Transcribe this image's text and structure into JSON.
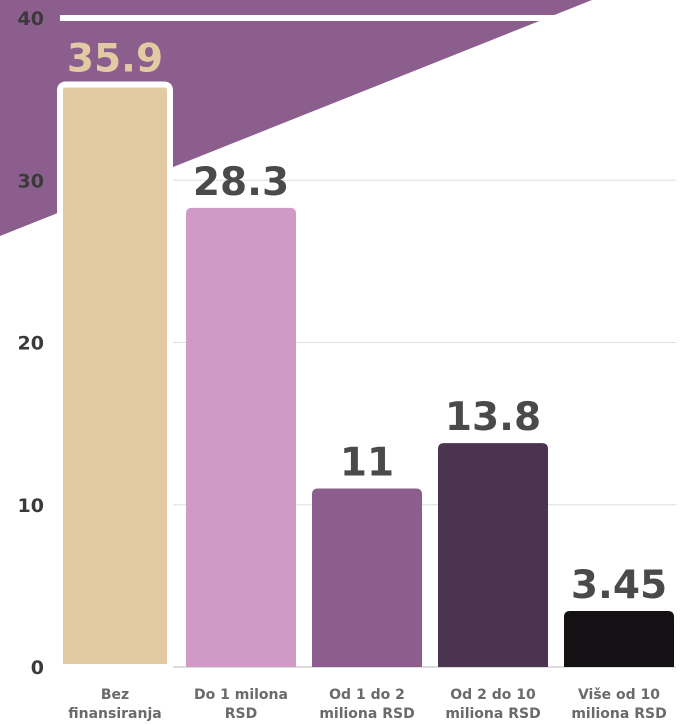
{
  "chart_data": {
    "type": "bar",
    "title": "",
    "xlabel": "",
    "ylabel": "",
    "ylim": [
      0,
      40
    ],
    "yticks": [
      0,
      10,
      20,
      30,
      40
    ],
    "grid": true,
    "categories": [
      [
        "Bez",
        "finansiranja"
      ],
      [
        "Do 1 milona",
        "RSD"
      ],
      [
        "Od 1 do 2",
        "miliona RSD"
      ],
      [
        "Od 2 do 10",
        "miliona RSD"
      ],
      [
        "Više od 10",
        "miliona RSD"
      ]
    ],
    "values": [
      35.9,
      28.3,
      11,
      13.8,
      3.45
    ],
    "value_labels": [
      "35.9",
      "28.3",
      "11",
      "13.8",
      "3.45"
    ],
    "bar_colors": [
      "#e2cba3",
      "#cf9ac6",
      "#8c5e8d",
      "#4b344f",
      "#141013"
    ],
    "label_colors": [
      "#e2cba3",
      "#4a4a4a",
      "#4a4a4a",
      "#4a4a4a",
      "#4a4a4a"
    ],
    "highlight_bar": 0,
    "background_accent": "#8c5e8d"
  }
}
